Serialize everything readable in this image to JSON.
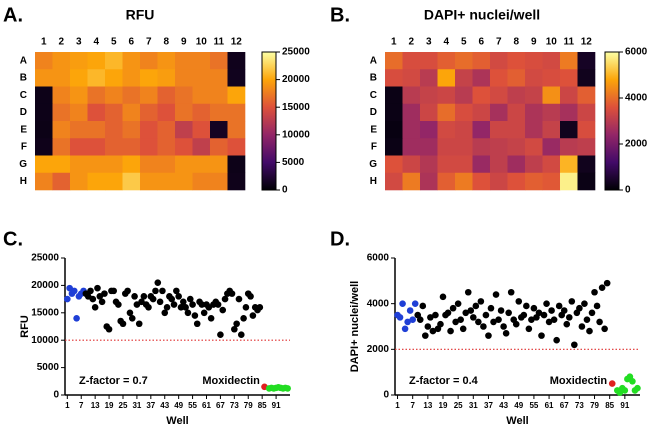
{
  "chart_data": [
    {
      "type": "heatmap",
      "panel": "A.",
      "title": "RFU",
      "x": [
        1,
        2,
        3,
        4,
        5,
        6,
        7,
        8,
        9,
        10,
        11,
        12
      ],
      "y": [
        "A",
        "B",
        "C",
        "D",
        "E",
        "F",
        "G",
        "H"
      ],
      "values": [
        [
          18000,
          19000,
          19500,
          20000,
          21000,
          19000,
          18000,
          19000,
          18000,
          18000,
          17000,
          1200
        ],
        [
          19000,
          19000,
          20000,
          21000,
          20000,
          19000,
          20000,
          19500,
          18000,
          18000,
          18000,
          1300
        ],
        [
          1000,
          18000,
          19000,
          17000,
          18000,
          17000,
          18000,
          16000,
          17000,
          18000,
          18000,
          20000
        ],
        [
          1000,
          17000,
          18000,
          15000,
          16000,
          18000,
          16000,
          15000,
          17000,
          16000,
          17000,
          17000
        ],
        [
          900,
          18000,
          17000,
          17000,
          16000,
          17000,
          15000,
          16000,
          13000,
          15000,
          1500,
          17000
        ],
        [
          1100,
          17000,
          15000,
          15000,
          16000,
          16000,
          15000,
          16000,
          15000,
          13000,
          16000,
          15000
        ],
        [
          20000,
          20000,
          19000,
          19000,
          19000,
          20000,
          18000,
          18000,
          19000,
          19000,
          19000,
          1000
        ],
        [
          18000,
          16000,
          19000,
          20000,
          20000,
          22000,
          19000,
          19000,
          19000,
          18000,
          18000,
          1100
        ]
      ],
      "zlim": [
        0,
        25000
      ],
      "zticks": [
        0,
        5000,
        10000,
        15000,
        20000,
        25000
      ],
      "colormap": [
        "#000004",
        "#420a68",
        "#932667",
        "#dd513a",
        "#fca50a",
        "#fcffa4"
      ]
    },
    {
      "type": "heatmap",
      "panel": "B.",
      "title": "DAPI+ nuclei/well",
      "x": [
        1,
        2,
        3,
        4,
        5,
        6,
        7,
        8,
        9,
        10,
        11,
        12
      ],
      "y": [
        "A",
        "B",
        "C",
        "D",
        "E",
        "F",
        "G",
        "H"
      ],
      "values": [
        [
          4000,
          3500,
          3500,
          3800,
          4000,
          3800,
          3400,
          3600,
          3500,
          3400,
          4200,
          400
        ],
        [
          3500,
          3400,
          3000,
          4800,
          3200,
          2800,
          3600,
          3800,
          3400,
          3500,
          3600,
          300
        ],
        [
          200,
          3000,
          3200,
          3300,
          3000,
          3600,
          3400,
          3100,
          3200,
          4500,
          3300,
          3800
        ],
        [
          200,
          2600,
          3300,
          4000,
          3500,
          3300,
          2700,
          3300,
          2800,
          3000,
          2700,
          3300
        ],
        [
          150,
          2600,
          2400,
          3400,
          3300,
          2400,
          3300,
          3300,
          2800,
          3200,
          300,
          3500
        ],
        [
          200,
          2600,
          2600,
          3300,
          3300,
          3000,
          3100,
          3200,
          3400,
          2500,
          3000,
          3100
        ],
        [
          3600,
          3300,
          2900,
          3400,
          3400,
          2500,
          3100,
          2600,
          3100,
          3400,
          5000,
          300
        ],
        [
          3400,
          4200,
          2800,
          3800,
          4200,
          3600,
          3300,
          3600,
          3800,
          3700,
          5800,
          200
        ]
      ],
      "zlim": [
        0,
        6000
      ],
      "zticks": [
        0,
        2000,
        4000,
        6000
      ],
      "colormap": [
        "#000004",
        "#420a68",
        "#932667",
        "#dd513a",
        "#fca50a",
        "#fcffa4"
      ]
    },
    {
      "type": "scatter",
      "panel": "C.",
      "x_label": "Well",
      "y_label": "RFU",
      "xlim": [
        0,
        97
      ],
      "xticks": [
        1,
        7,
        13,
        19,
        25,
        31,
        37,
        43,
        49,
        55,
        61,
        67,
        73,
        79,
        85,
        91
      ],
      "ylim": [
        0,
        25000
      ],
      "yticks": [
        0,
        5000,
        10000,
        15000,
        20000,
        25000
      ],
      "threshold": 10000,
      "threshold_color": "#e03030",
      "annotations": [
        "Z-factor = 0.7",
        "Moxidectin"
      ],
      "series": [
        {
          "color": "#1f3fd6",
          "x": [
            1,
            2,
            3,
            4,
            5,
            6,
            7,
            8
          ],
          "values": [
            17500,
            19500,
            18500,
            19000,
            14000,
            18000,
            18500,
            19000
          ]
        },
        {
          "color": "#000000",
          "x": [
            9,
            10,
            11,
            12,
            13,
            14,
            15,
            16,
            17,
            18,
            19,
            20,
            21,
            22,
            23,
            24,
            25,
            26,
            27,
            28,
            29,
            30,
            31,
            32,
            33,
            34,
            35,
            36,
            37,
            38,
            39,
            40,
            41,
            42,
            43,
            44,
            45,
            46,
            47,
            48,
            49,
            50,
            51,
            52,
            53,
            54,
            55,
            56,
            57,
            58,
            59,
            60,
            61,
            62,
            63,
            64,
            65,
            66,
            67,
            68,
            69,
            70,
            71,
            72,
            73,
            74,
            75,
            76,
            77,
            78,
            79,
            80,
            81,
            82,
            83,
            84
          ],
          "values": [
            18500,
            18000,
            19000,
            17500,
            16000,
            19500,
            18000,
            17000,
            18500,
            12500,
            12000,
            19000,
            19000,
            17000,
            16500,
            13500,
            13000,
            18500,
            19000,
            15000,
            14000,
            18000,
            16500,
            13000,
            17000,
            18000,
            16500,
            16000,
            18000,
            17500,
            19000,
            20500,
            17000,
            19000,
            15000,
            16000,
            18000,
            17500,
            16500,
            19000,
            18000,
            16000,
            17000,
            16000,
            15000,
            17500,
            16500,
            14500,
            13000,
            17000,
            16500,
            15000,
            16500,
            16000,
            14000,
            16500,
            17000,
            16500,
            11000,
            15500,
            17500,
            18500,
            19000,
            18500,
            12000,
            13000,
            17500,
            11000,
            14000,
            16000,
            18500,
            18000,
            14500,
            16000,
            15500,
            16000
          ]
        },
        {
          "color": "#e02020",
          "x": [
            86
          ],
          "values": [
            1500
          ]
        },
        {
          "color": "#22dd22",
          "x": [
            88,
            89,
            90,
            91,
            92,
            93,
            94,
            95,
            96
          ],
          "values": [
            1200,
            1300,
            1200,
            1300,
            1400,
            1300,
            1200,
            1300,
            1200
          ]
        }
      ]
    },
    {
      "type": "scatter",
      "panel": "D.",
      "x_label": "Well",
      "y_label": "DAPI+ nuclei/well",
      "xlim": [
        0,
        97
      ],
      "xticks": [
        1,
        7,
        13,
        19,
        25,
        31,
        37,
        43,
        49,
        55,
        61,
        67,
        73,
        79,
        85,
        91
      ],
      "ylim": [
        0,
        6000
      ],
      "yticks": [
        0,
        2000,
        4000,
        6000
      ],
      "threshold": 2000,
      "threshold_color": "#e03030",
      "annotations": [
        "Z-factor = 0.4",
        "Moxidectin"
      ],
      "series": [
        {
          "color": "#1f3fd6",
          "x": [
            1,
            2,
            3,
            4,
            5,
            6,
            7,
            8
          ],
          "values": [
            3500,
            3400,
            4000,
            2900,
            3200,
            3700,
            3300,
            4000
          ]
        },
        {
          "color": "#000000",
          "x": [
            9,
            10,
            11,
            12,
            13,
            14,
            15,
            16,
            17,
            18,
            19,
            20,
            21,
            22,
            23,
            24,
            25,
            26,
            27,
            28,
            29,
            30,
            31,
            32,
            33,
            34,
            35,
            36,
            37,
            38,
            39,
            40,
            41,
            42,
            43,
            44,
            45,
            46,
            47,
            48,
            49,
            50,
            51,
            52,
            53,
            54,
            55,
            56,
            57,
            58,
            59,
            60,
            61,
            62,
            63,
            64,
            65,
            66,
            67,
            68,
            69,
            70,
            71,
            72,
            73,
            74,
            75,
            76,
            77,
            78,
            79,
            80,
            81,
            82,
            83,
            84
          ],
          "values": [
            3500,
            3300,
            3900,
            2600,
            3000,
            3400,
            2800,
            3500,
            2900,
            3100,
            4300,
            3500,
            3600,
            2800,
            3800,
            3200,
            4000,
            3300,
            2900,
            3600,
            4500,
            3700,
            3400,
            3900,
            3200,
            4100,
            3000,
            3500,
            2600,
            3800,
            3200,
            4400,
            3300,
            3700,
            3000,
            2700,
            3600,
            4500,
            3300,
            3100,
            4100,
            3400,
            3500,
            3900,
            2900,
            3300,
            3800,
            3400,
            3600,
            2600,
            3500,
            4000,
            3200,
            3700,
            3300,
            2400,
            3900,
            3500,
            3700,
            3100,
            3400,
            4100,
            2200,
            3600,
            3800,
            3000,
            4000,
            3300,
            2800,
            3600,
            4500,
            3900,
            3200,
            4700,
            2900,
            4900
          ]
        },
        {
          "color": "#e02020",
          "x": [
            86
          ],
          "values": [
            500
          ]
        },
        {
          "color": "#22dd22",
          "x": [
            88,
            89,
            90,
            91,
            92,
            93,
            94,
            95,
            96
          ],
          "values": [
            200,
            100,
            300,
            200,
            700,
            800,
            600,
            200,
            300
          ]
        }
      ]
    }
  ]
}
